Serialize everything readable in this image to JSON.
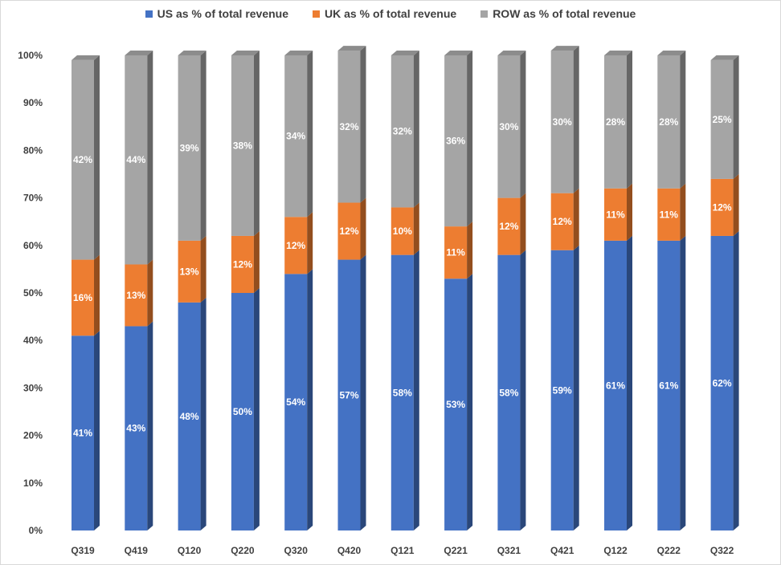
{
  "chart_data": {
    "type": "bar",
    "stacked": true,
    "categories": [
      "Q319",
      "Q419",
      "Q120",
      "Q220",
      "Q320",
      "Q420",
      "Q121",
      "Q221",
      "Q321",
      "Q421",
      "Q122",
      "Q222",
      "Q322"
    ],
    "series": [
      {
        "name": "US as % of total revenue",
        "color": "#4472c4",
        "values": [
          41,
          43,
          48,
          50,
          54,
          57,
          58,
          53,
          58,
          59,
          61,
          61,
          62
        ],
        "labels": [
          "41%",
          "43%",
          "48%",
          "50%",
          "54%",
          "57%",
          "58%",
          "53%",
          "58%",
          "59%",
          "61%",
          "61%",
          "62%"
        ]
      },
      {
        "name": "UK as % of total revenue",
        "color": "#ed7d31",
        "values": [
          16,
          13,
          13,
          12,
          12,
          12,
          10,
          11,
          12,
          12,
          11,
          11,
          12
        ],
        "labels": [
          "16%",
          "13%",
          "13%",
          "12%",
          "12%",
          "12%",
          "10%",
          "11%",
          "12%",
          "12%",
          "11%",
          "11%",
          "12%"
        ]
      },
      {
        "name": "ROW as % of total revenue",
        "color": "#a5a5a5",
        "values": [
          42,
          44,
          39,
          38,
          34,
          32,
          32,
          36,
          30,
          30,
          28,
          28,
          25
        ],
        "labels": [
          "42%",
          "44%",
          "39%",
          "38%",
          "34%",
          "32%",
          "32%",
          "36%",
          "30%",
          "30%",
          "28%",
          "28%",
          "25%"
        ]
      }
    ],
    "ylim": [
      0,
      100
    ],
    "yticks": [
      "0%",
      "10%",
      "20%",
      "30%",
      "40%",
      "50%",
      "60%",
      "70%",
      "80%",
      "90%",
      "100%"
    ],
    "legend_position": "top",
    "grid": false
  }
}
